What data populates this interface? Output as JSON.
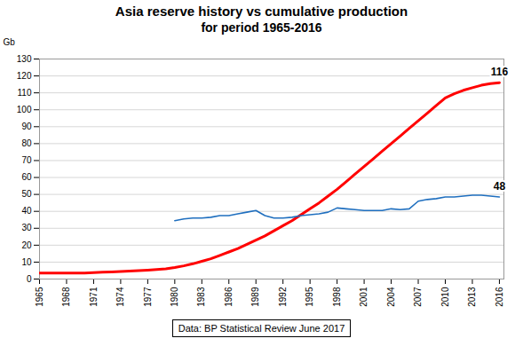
{
  "chart_data": {
    "type": "line",
    "title": "Asia reserve history vs cumulative production",
    "subtitle": "for period 1965-2016",
    "ylabel": "Gb",
    "caption": "Data: BP Statistical Review June 2017",
    "x": [
      1965,
      1966,
      1967,
      1968,
      1969,
      1970,
      1971,
      1972,
      1973,
      1974,
      1975,
      1976,
      1977,
      1978,
      1979,
      1980,
      1981,
      1982,
      1983,
      1984,
      1985,
      1986,
      1987,
      1988,
      1989,
      1990,
      1991,
      1992,
      1993,
      1994,
      1995,
      1996,
      1997,
      1998,
      1999,
      2000,
      2001,
      2002,
      2003,
      2004,
      2005,
      2006,
      2007,
      2008,
      2009,
      2010,
      2011,
      2012,
      2013,
      2014,
      2015,
      2016
    ],
    "series": [
      {
        "color": "#FF0000",
        "values": [
          3.5,
          3.5,
          3.5,
          3.5,
          3.5,
          3.6,
          3.8,
          4.0,
          4.2,
          4.5,
          4.7,
          5.0,
          5.3,
          5.6,
          6.0,
          6.8,
          7.8,
          9.0,
          10.5,
          12.0,
          14.0,
          16.0,
          18.0,
          20.5,
          23.0,
          25.5,
          28.5,
          31.5,
          34.5,
          38.0,
          41.5,
          45.0,
          49.0,
          53.0,
          57.5,
          62.0,
          66.5,
          71.0,
          75.5,
          80.0,
          84.5,
          89.0,
          93.5,
          98.0,
          102.5,
          107.0,
          109.5,
          111.5,
          113.0,
          114.5,
          115.5,
          116.0
        ]
      },
      {
        "color": "#1F6FBF",
        "values": [
          null,
          null,
          null,
          null,
          null,
          null,
          null,
          null,
          null,
          null,
          null,
          null,
          null,
          null,
          null,
          34.5,
          35.5,
          36.0,
          36.0,
          36.5,
          37.5,
          37.5,
          38.5,
          39.5,
          40.5,
          37.5,
          36.0,
          36.0,
          36.5,
          37.5,
          38.0,
          38.5,
          39.5,
          42.0,
          41.5,
          41.0,
          40.5,
          40.5,
          40.5,
          41.5,
          41.0,
          41.5,
          46.0,
          47.0,
          47.5,
          48.5,
          48.5,
          49.0,
          49.5,
          49.5,
          49.0,
          48.5
        ]
      }
    ],
    "annotations": [
      {
        "text": "116",
        "x": 2016,
        "y": 116.0
      },
      {
        "text": "48",
        "x": 2016,
        "y": 48.5
      }
    ],
    "xlim": [
      1965,
      2016.5
    ],
    "xticks": [
      1965,
      1968,
      1971,
      1974,
      1977,
      1980,
      1983,
      1986,
      1989,
      1992,
      1995,
      1998,
      2001,
      2004,
      2007,
      2010,
      2013,
      2016
    ],
    "ylim": [
      0,
      130
    ],
    "yticks": [
      0,
      10,
      20,
      30,
      40,
      50,
      60,
      70,
      80,
      90,
      100,
      110,
      120,
      130
    ],
    "grid": "y"
  }
}
